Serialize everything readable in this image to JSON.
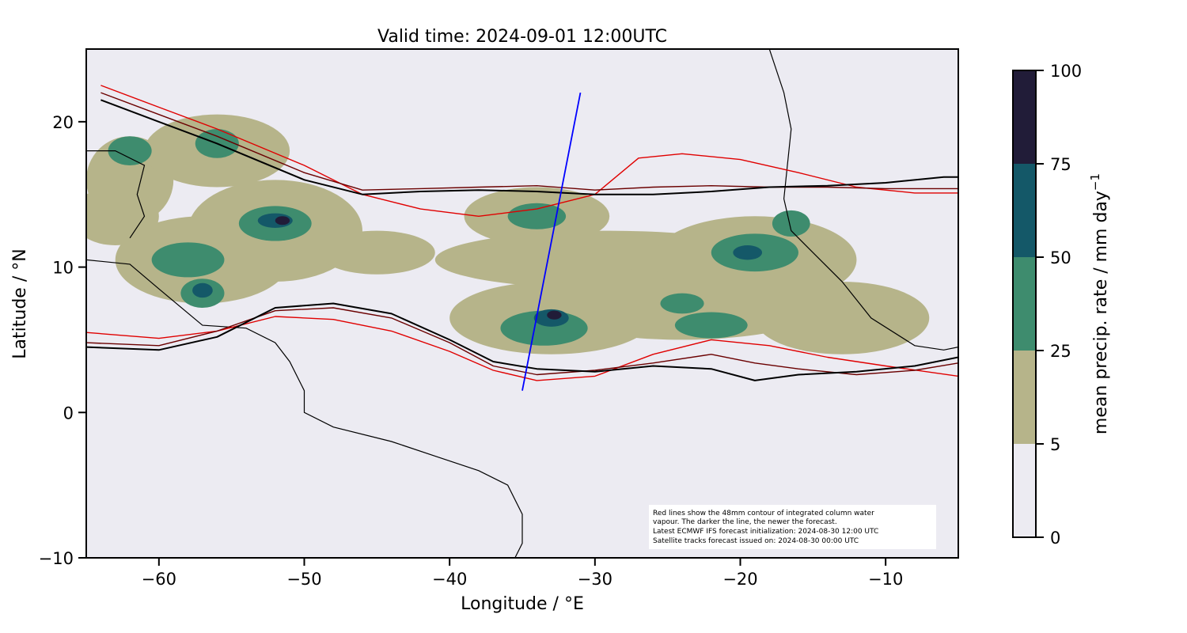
{
  "title": "Valid time: 2024-09-01 12:00UTC",
  "x_axis": {
    "label": "Longitude / °E",
    "range": [
      -65,
      -5
    ],
    "ticks": [
      {
        "value": -60,
        "label": "−60"
      },
      {
        "value": -50,
        "label": "−50"
      },
      {
        "value": -40,
        "label": "−40"
      },
      {
        "value": -30,
        "label": "−30"
      },
      {
        "value": -20,
        "label": "−20"
      },
      {
        "value": -10,
        "label": "−10"
      }
    ]
  },
  "y_axis": {
    "label": "Latitude / °N",
    "range": [
      -10,
      25
    ],
    "ticks": [
      {
        "value": 20,
        "label": "20"
      },
      {
        "value": 10,
        "label": "10"
      },
      {
        "value": 0,
        "label": "0"
      },
      {
        "value": -10,
        "label": "−10"
      }
    ]
  },
  "colorbar": {
    "label": "mean precip. rate / mm day",
    "label_exponent": "−1",
    "levels": [
      {
        "from": 0,
        "to": 5,
        "color": "#ECEBF2"
      },
      {
        "from": 5,
        "to": 25,
        "color": "#B6B48A"
      },
      {
        "from": 25,
        "to": 50,
        "color": "#3E8C6E"
      },
      {
        "from": 50,
        "to": 75,
        "color": "#145868"
      },
      {
        "from": 75,
        "to": 100,
        "color": "#211C38"
      }
    ],
    "ticks": [
      {
        "value": 0,
        "label": "0"
      },
      {
        "value": 5,
        "label": "5"
      },
      {
        "value": 25,
        "label": "25"
      },
      {
        "value": 50,
        "label": "50"
      },
      {
        "value": 75,
        "label": "75"
      },
      {
        "value": 100,
        "label": "100"
      }
    ]
  },
  "annotation": {
    "lines": [
      "Red lines show the 48mm contour of integrated column water",
      "vapour. The darker the line, the newer the forecast.",
      "Latest ECMWF IFS forecast initialization: 2024-08-30 12:00 UTC",
      "Satellite tracks forecast issued on: 2024-08-30 00:00 UTC"
    ]
  },
  "satellite_track": {
    "color": "#0000FF",
    "points": [
      [
        -35.0,
        1.5
      ],
      [
        -31.0,
        22.0
      ]
    ]
  },
  "colors": {
    "background": "#ECEBF2",
    "coastline": "#000000",
    "contour_latest": "#000000",
    "contour_mid": "#6B0000",
    "contour_old": "#E00000"
  },
  "chart_data": {
    "type": "heatmap",
    "title": "Valid time: 2024-09-01 12:00UTC",
    "xlabel": "Longitude / °E",
    "ylabel": "Latitude / °N",
    "xlim": [
      -65,
      -5
    ],
    "ylim": [
      -10,
      25
    ],
    "grid": false,
    "precip_cells": [
      {
        "lon": -62,
        "lat": 16,
        "rx": 3,
        "ry": 3,
        "level": 5
      },
      {
        "lon": -56,
        "lat": 18,
        "rx": 5,
        "ry": 2.5,
        "level": 5
      },
      {
        "lon": -52,
        "lat": 12.5,
        "rx": 6,
        "ry": 3.5,
        "level": 5
      },
      {
        "lon": -57,
        "lat": 10.5,
        "rx": 6,
        "ry": 3,
        "level": 5
      },
      {
        "lon": -63,
        "lat": 13.5,
        "rx": 3,
        "ry": 2,
        "level": 5
      },
      {
        "lon": -45,
        "lat": 11,
        "rx": 4,
        "ry": 1.5,
        "level": 5
      },
      {
        "lon": -34,
        "lat": 13.5,
        "rx": 5,
        "ry": 2,
        "level": 5
      },
      {
        "lon": -29,
        "lat": 10.5,
        "rx": 12,
        "ry": 2,
        "level": 5
      },
      {
        "lon": -33,
        "lat": 6.5,
        "rx": 7,
        "ry": 2.5,
        "level": 5
      },
      {
        "lon": -24,
        "lat": 7.5,
        "rx": 10,
        "ry": 2.5,
        "level": 5
      },
      {
        "lon": -19,
        "lat": 10.5,
        "rx": 7,
        "ry": 3,
        "level": 5
      },
      {
        "lon": -13,
        "lat": 6.5,
        "rx": 6,
        "ry": 2.5,
        "level": 5
      },
      {
        "lon": -62,
        "lat": 18,
        "rx": 1.5,
        "ry": 1,
        "level": 25
      },
      {
        "lon": -56,
        "lat": 18.5,
        "rx": 1.5,
        "ry": 1,
        "level": 25
      },
      {
        "lon": -52,
        "lat": 13,
        "rx": 2.5,
        "ry": 1.2,
        "level": 25
      },
      {
        "lon": -58,
        "lat": 10.5,
        "rx": 2.5,
        "ry": 1.2,
        "level": 25
      },
      {
        "lon": -57,
        "lat": 8.2,
        "rx": 1.5,
        "ry": 1,
        "level": 25
      },
      {
        "lon": -33.5,
        "lat": 5.8,
        "rx": 3,
        "ry": 1.2,
        "level": 25
      },
      {
        "lon": -34,
        "lat": 13.5,
        "rx": 2,
        "ry": 0.9,
        "level": 25
      },
      {
        "lon": -19,
        "lat": 11,
        "rx": 3,
        "ry": 1.3,
        "level": 25
      },
      {
        "lon": -22,
        "lat": 6,
        "rx": 2.5,
        "ry": 0.9,
        "level": 25
      },
      {
        "lon": -24,
        "lat": 7.5,
        "rx": 1.5,
        "ry": 0.7,
        "level": 25
      },
      {
        "lon": -16.5,
        "lat": 13,
        "rx": 1.3,
        "ry": 0.9,
        "level": 25
      },
      {
        "lon": -52,
        "lat": 13.2,
        "rx": 1.2,
        "ry": 0.5,
        "level": 50
      },
      {
        "lon": -57,
        "lat": 8.4,
        "rx": 0.7,
        "ry": 0.5,
        "level": 50
      },
      {
        "lon": -33,
        "lat": 6.5,
        "rx": 1.2,
        "ry": 0.6,
        "level": 50
      },
      {
        "lon": -19.5,
        "lat": 11,
        "rx": 1,
        "ry": 0.5,
        "level": 50
      },
      {
        "lon": -51.5,
        "lat": 13.2,
        "rx": 0.5,
        "ry": 0.3,
        "level": 75
      },
      {
        "lon": -32.8,
        "lat": 6.7,
        "rx": 0.5,
        "ry": 0.3,
        "level": 75
      }
    ],
    "iwv_48mm_contours": [
      {
        "age": "latest",
        "color": "#000000",
        "north": [
          [
            -64,
            21.5
          ],
          [
            -60,
            20
          ],
          [
            -56,
            18.5
          ],
          [
            -50,
            16
          ],
          [
            -46,
            15
          ],
          [
            -42,
            15.2
          ],
          [
            -38,
            15.3
          ],
          [
            -34,
            15.2
          ],
          [
            -30,
            15
          ],
          [
            -26,
            15
          ],
          [
            -22,
            15.2
          ],
          [
            -18,
            15.5
          ],
          [
            -14,
            15.6
          ],
          [
            -10,
            15.8
          ],
          [
            -6,
            16.2
          ],
          [
            -5,
            16.2
          ]
        ],
        "south": [
          [
            -65,
            4.5
          ],
          [
            -60,
            4.3
          ],
          [
            -56,
            5.2
          ],
          [
            -52,
            7.2
          ],
          [
            -48,
            7.5
          ],
          [
            -44,
            6.8
          ],
          [
            -40,
            5
          ],
          [
            -37,
            3.5
          ],
          [
            -34,
            3
          ],
          [
            -30,
            2.8
          ],
          [
            -26,
            3.2
          ],
          [
            -22,
            3
          ],
          [
            -19,
            2.2
          ],
          [
            -16,
            2.6
          ],
          [
            -12,
            2.8
          ],
          [
            -8,
            3.2
          ],
          [
            -5,
            3.8
          ]
        ]
      },
      {
        "age": "previous",
        "color": "#6B0000",
        "north": [
          [
            -64,
            22
          ],
          [
            -60,
            20.5
          ],
          [
            -56,
            19
          ],
          [
            -50,
            16.5
          ],
          [
            -46,
            15.3
          ],
          [
            -42,
            15.4
          ],
          [
            -38,
            15.5
          ],
          [
            -34,
            15.6
          ],
          [
            -30,
            15.3
          ],
          [
            -26,
            15.5
          ],
          [
            -22,
            15.6
          ],
          [
            -18,
            15.5
          ],
          [
            -14,
            15.5
          ],
          [
            -10,
            15.4
          ],
          [
            -6,
            15.4
          ],
          [
            -5,
            15.4
          ]
        ],
        "south": [
          [
            -65,
            4.8
          ],
          [
            -60,
            4.6
          ],
          [
            -56,
            5.6
          ],
          [
            -52,
            7
          ],
          [
            -48,
            7.2
          ],
          [
            -44,
            6.5
          ],
          [
            -40,
            4.8
          ],
          [
            -37,
            3.2
          ],
          [
            -34,
            2.6
          ],
          [
            -30,
            2.9
          ],
          [
            -26,
            3.4
          ],
          [
            -22,
            4
          ],
          [
            -19,
            3.4
          ],
          [
            -16,
            3
          ],
          [
            -12,
            2.6
          ],
          [
            -8,
            2.9
          ],
          [
            -5,
            3.4
          ]
        ]
      },
      {
        "age": "older",
        "color": "#E00000",
        "north": [
          [
            -64,
            22.5
          ],
          [
            -60,
            21
          ],
          [
            -56,
            19.5
          ],
          [
            -50,
            17
          ],
          [
            -46,
            15
          ],
          [
            -42,
            14
          ],
          [
            -38,
            13.5
          ],
          [
            -34,
            14
          ],
          [
            -30,
            15
          ],
          [
            -27,
            17.5
          ],
          [
            -24,
            17.8
          ],
          [
            -20,
            17.4
          ],
          [
            -16,
            16.5
          ],
          [
            -12,
            15.5
          ],
          [
            -8,
            15.1
          ],
          [
            -5,
            15.1
          ]
        ],
        "south": [
          [
            -65,
            5.5
          ],
          [
            -60,
            5.1
          ],
          [
            -56,
            5.6
          ],
          [
            -52,
            6.6
          ],
          [
            -48,
            6.4
          ],
          [
            -44,
            5.6
          ],
          [
            -40,
            4.2
          ],
          [
            -37,
            2.9
          ],
          [
            -34,
            2.2
          ],
          [
            -30,
            2.5
          ],
          [
            -26,
            4
          ],
          [
            -22,
            5
          ],
          [
            -18,
            4.6
          ],
          [
            -14,
            3.8
          ],
          [
            -10,
            3.2
          ],
          [
            -5,
            2.5
          ]
        ]
      }
    ]
  }
}
